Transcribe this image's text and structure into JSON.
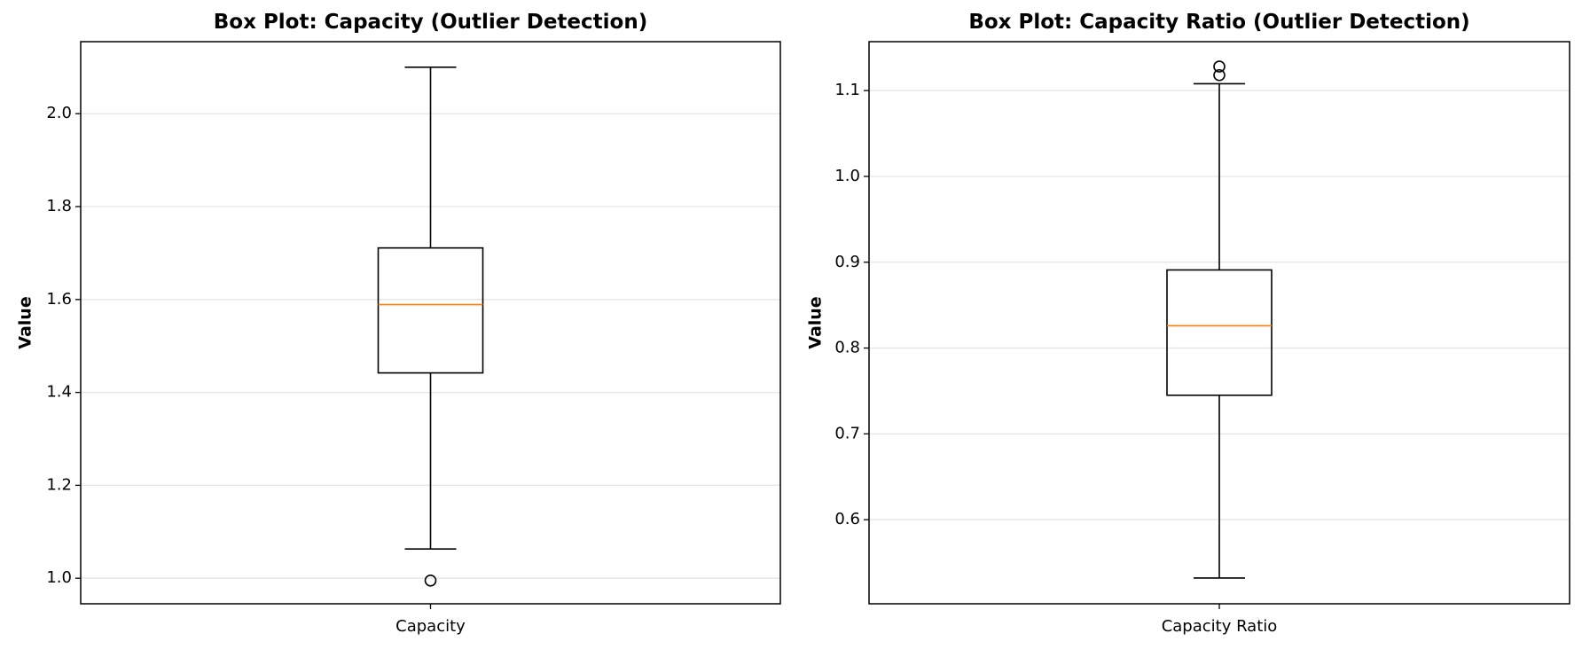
{
  "chart_data": [
    {
      "type": "box",
      "title": "Box Plot: Capacity (Outlier Detection)",
      "ylabel": "Value",
      "ylim": [
        0.945,
        2.155
      ],
      "yticks": [
        1.0,
        1.2,
        1.4,
        1.6,
        1.8,
        2.0
      ],
      "ytick_labels": [
        "1.0",
        "1.2",
        "1.4",
        "1.6",
        "1.8",
        "2.0"
      ],
      "grid": "y",
      "boxes": [
        {
          "label": "Capacity",
          "whisker_low": 1.063,
          "q1": 1.442,
          "median": 1.589,
          "q3": 1.711,
          "whisker_high": 2.1,
          "outliers": [
            0.995
          ]
        }
      ]
    },
    {
      "type": "box",
      "title": "Box Plot: Capacity Ratio (Outlier Detection)",
      "ylabel": "Value",
      "ylim": [
        0.502,
        1.157
      ],
      "yticks": [
        0.6,
        0.7,
        0.8,
        0.9,
        1.0,
        1.1
      ],
      "ytick_labels": [
        "0.6",
        "0.7",
        "0.8",
        "0.9",
        "1.0",
        "1.1"
      ],
      "grid": "y",
      "boxes": [
        {
          "label": "Capacity Ratio",
          "whisker_low": 0.532,
          "q1": 0.745,
          "median": 0.826,
          "q3": 0.891,
          "whisker_high": 1.108,
          "outliers": [
            1.118,
            1.128
          ]
        }
      ]
    }
  ],
  "colors": {
    "median": "#ff7f0e",
    "box": "#000000",
    "grid": "#e6e6e6"
  }
}
